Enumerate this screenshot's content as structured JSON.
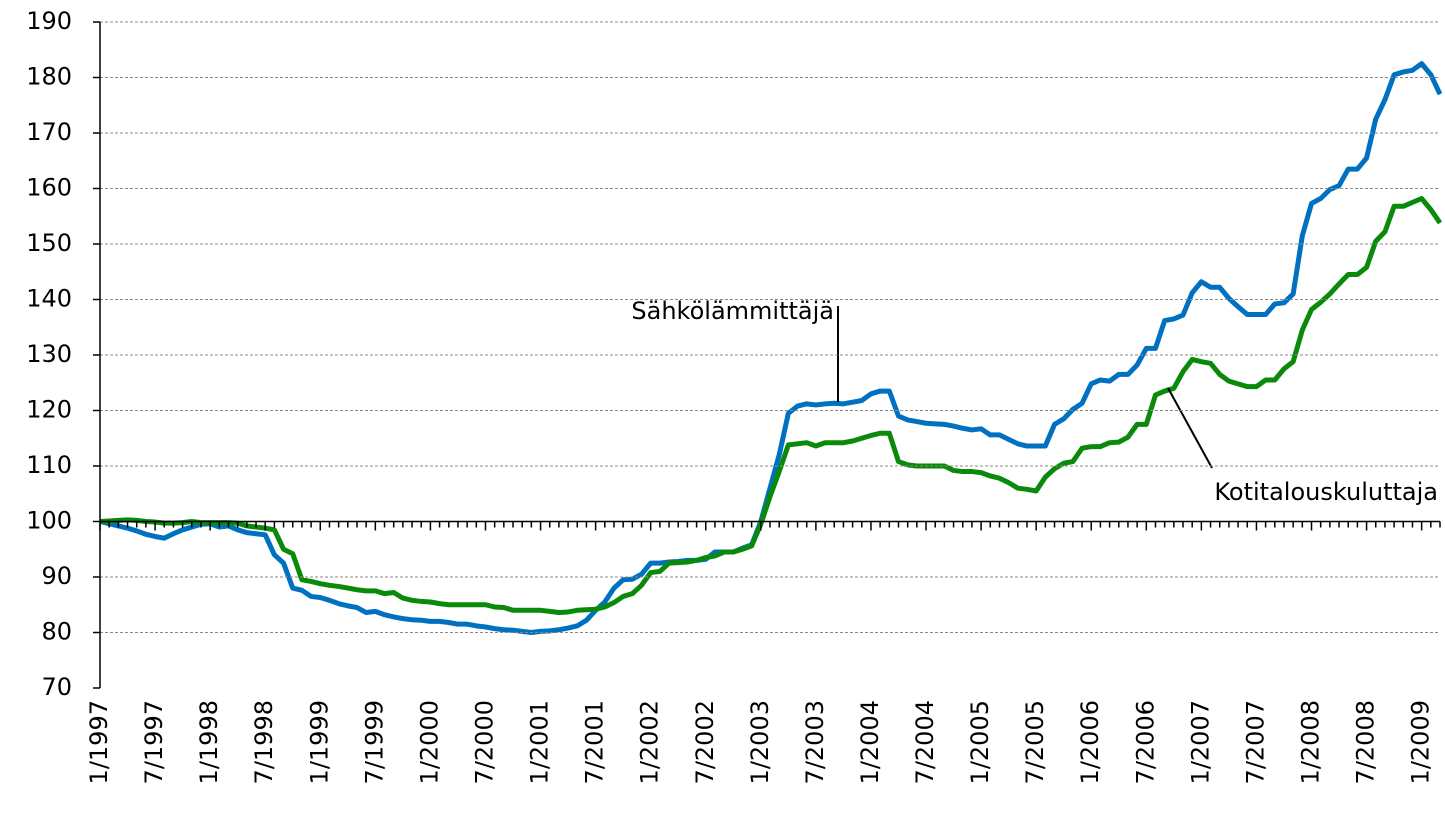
{
  "chart_data": {
    "type": "line",
    "categories": [
      "1/1997",
      null,
      null,
      null,
      null,
      null,
      "7/1997",
      null,
      null,
      null,
      null,
      null,
      "1/1998",
      null,
      null,
      null,
      null,
      null,
      "7/1998",
      null,
      null,
      null,
      null,
      null,
      "1/1999",
      null,
      null,
      null,
      null,
      null,
      "7/1999",
      null,
      null,
      null,
      null,
      null,
      "1/2000",
      null,
      null,
      null,
      null,
      null,
      "7/2000",
      null,
      null,
      null,
      null,
      null,
      "1/2001",
      null,
      null,
      null,
      null,
      null,
      "7/2001",
      null,
      null,
      null,
      null,
      null,
      "1/2002",
      null,
      null,
      null,
      null,
      null,
      "7/2002",
      null,
      null,
      null,
      null,
      null,
      "1/2003",
      null,
      null,
      null,
      null,
      null,
      "7/2003",
      null,
      null,
      null,
      null,
      null,
      "1/2004",
      null,
      null,
      null,
      null,
      null,
      "7/2004",
      null,
      null,
      null,
      null,
      null,
      "1/2005",
      null,
      null,
      null,
      null,
      null,
      "7/2005",
      null,
      null,
      null,
      null,
      null,
      "1/2006",
      null,
      null,
      null,
      null,
      null,
      "7/2006",
      null,
      null,
      null,
      null,
      null,
      "1/2007",
      null,
      null,
      null,
      null,
      null,
      "7/2007",
      null,
      null,
      null,
      null,
      null,
      "1/2008",
      null,
      null,
      null,
      null,
      null,
      "7/2008",
      null,
      null,
      null,
      null,
      null,
      "1/2009",
      null,
      null
    ],
    "series": [
      {
        "color": "#0070c0",
        "values": [
          100,
          99.6,
          99.2,
          98.8,
          98.3,
          97.7,
          97.3,
          97.0,
          97.8,
          98.5,
          99.0,
          99.5,
          99.6,
          99.0,
          99.2,
          98.5,
          98.0,
          97.8,
          97.6,
          94,
          92.5,
          88,
          87.6,
          86.5,
          86.3,
          85.8,
          85.2,
          84.8,
          84.5,
          83.6,
          83.8,
          83.2,
          82.8,
          82.5,
          82.3,
          82.2,
          82.0,
          82.0,
          81.8,
          81.5,
          81.5,
          81.2,
          81.0,
          80.7,
          80.5,
          80.4,
          80.2,
          80.0,
          80.2,
          80.3,
          80.5,
          80.8,
          81.2,
          82.2,
          84,
          85.5,
          88,
          89.5,
          89.6,
          90.5,
          92.5,
          92.5,
          92.7,
          92.8,
          93,
          93,
          93.2,
          94.5,
          94.5,
          94.5,
          95.2,
          95.8,
          100,
          106,
          112,
          119.5,
          120.8,
          121.2,
          121,
          121.2,
          121.3,
          121.2,
          121.5,
          121.8,
          123,
          123.5,
          123.5,
          119,
          118.3,
          118,
          117.7,
          117.6,
          117.5,
          117.2,
          116.8,
          116.5,
          116.7,
          115.6,
          115.6,
          114.8,
          114,
          113.6,
          113.6,
          113.6,
          117.5,
          118.5,
          120.2,
          121.3,
          124.8,
          125.5,
          125.3,
          126.5,
          126.5,
          128.2,
          131.2,
          131.2,
          136.2,
          136.5,
          137.2,
          141.2,
          143.2,
          142.2,
          142.2,
          140.2,
          138.7,
          137.3,
          137.3,
          137.3,
          139.2,
          139.4,
          141,
          151.5,
          157.3,
          158.2,
          159.8,
          160.5,
          163.5,
          163.5,
          165.5,
          172.5,
          176,
          180.5,
          181,
          181.3,
          182.5,
          180.5,
          177
        ]
      },
      {
        "color": "#0a8a0a",
        "values": [
          100,
          100.1,
          100.2,
          100.3,
          100.2,
          100,
          99.9,
          99.7,
          99.7,
          99.8,
          100,
          99.8,
          99.8,
          99.8,
          99.8,
          99.7,
          99.2,
          99,
          98.8,
          98.5,
          95,
          94.2,
          89.5,
          89.2,
          88.8,
          88.5,
          88.3,
          88,
          87.7,
          87.5,
          87.5,
          87,
          87.2,
          86.2,
          85.8,
          85.6,
          85.5,
          85.2,
          85,
          85,
          85,
          85,
          85,
          84.6,
          84.5,
          84,
          84,
          84,
          84,
          83.8,
          83.6,
          83.7,
          84,
          84.1,
          84.2,
          84.6,
          85.4,
          86.5,
          87,
          88.5,
          90.8,
          91,
          92.5,
          92.6,
          92.7,
          93,
          93.5,
          93.8,
          94.5,
          94.5,
          95,
          95.6,
          99.5,
          104.5,
          109,
          113.8,
          114,
          114.2,
          113.6,
          114.2,
          114.2,
          114.2,
          114.5,
          115,
          115.5,
          115.9,
          115.9,
          110.8,
          110.2,
          110,
          110,
          110,
          110,
          109.2,
          109,
          109,
          108.8,
          108.2,
          107.8,
          107,
          106,
          105.8,
          105.5,
          108,
          109.5,
          110.5,
          110.8,
          113.2,
          113.5,
          113.5,
          114.2,
          114.3,
          115.2,
          117.5,
          117.5,
          122.8,
          123.5,
          124,
          127,
          129.2,
          128.8,
          128.5,
          126.5,
          125.3,
          124.8,
          124.3,
          124.3,
          125.5,
          125.5,
          127.5,
          128.8,
          134.5,
          138.2,
          139.5,
          141,
          142.8,
          144.5,
          144.5,
          145.8,
          150.5,
          152.2,
          156.8,
          156.8,
          157.5,
          158.2,
          156.2,
          153.8
        ]
      }
    ],
    "annotations": [
      {
        "text": "Sähkölämmittäjä"
      },
      {
        "text": "Kotitalouskuluttaja"
      }
    ],
    "ylim": [
      70,
      190
    ],
    "yticks": [
      70,
      80,
      90,
      100,
      110,
      120,
      130,
      140,
      150,
      160,
      170,
      180,
      190
    ],
    "x_axis_crosses": 100,
    "grid": true
  }
}
